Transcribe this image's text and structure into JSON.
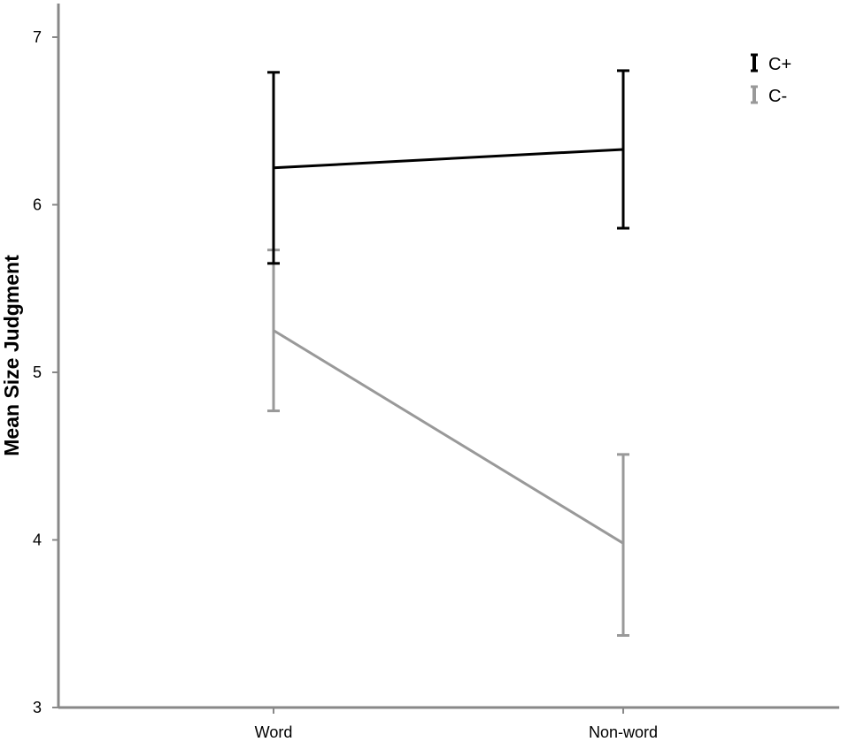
{
  "chart_data": {
    "type": "line",
    "title": "",
    "xlabel": "",
    "ylabel": "Mean Size Judgment",
    "categories": [
      "Word",
      "Non-word"
    ],
    "ylim": [
      3,
      7
    ],
    "y_ticks": [
      "3",
      "4",
      "5",
      "6",
      "7"
    ],
    "grid": false,
    "legend_position": "top-right",
    "error_bars": true,
    "series": [
      {
        "name": "C+",
        "color": "#000000",
        "values": [
          6.22,
          6.33
        ],
        "error_low": [
          5.65,
          5.86
        ],
        "error_high": [
          6.79,
          6.8
        ]
      },
      {
        "name": "C-",
        "color": "#999999",
        "values": [
          5.25,
          3.98
        ],
        "error_low": [
          4.77,
          3.43
        ],
        "error_high": [
          5.73,
          4.51
        ]
      }
    ]
  }
}
